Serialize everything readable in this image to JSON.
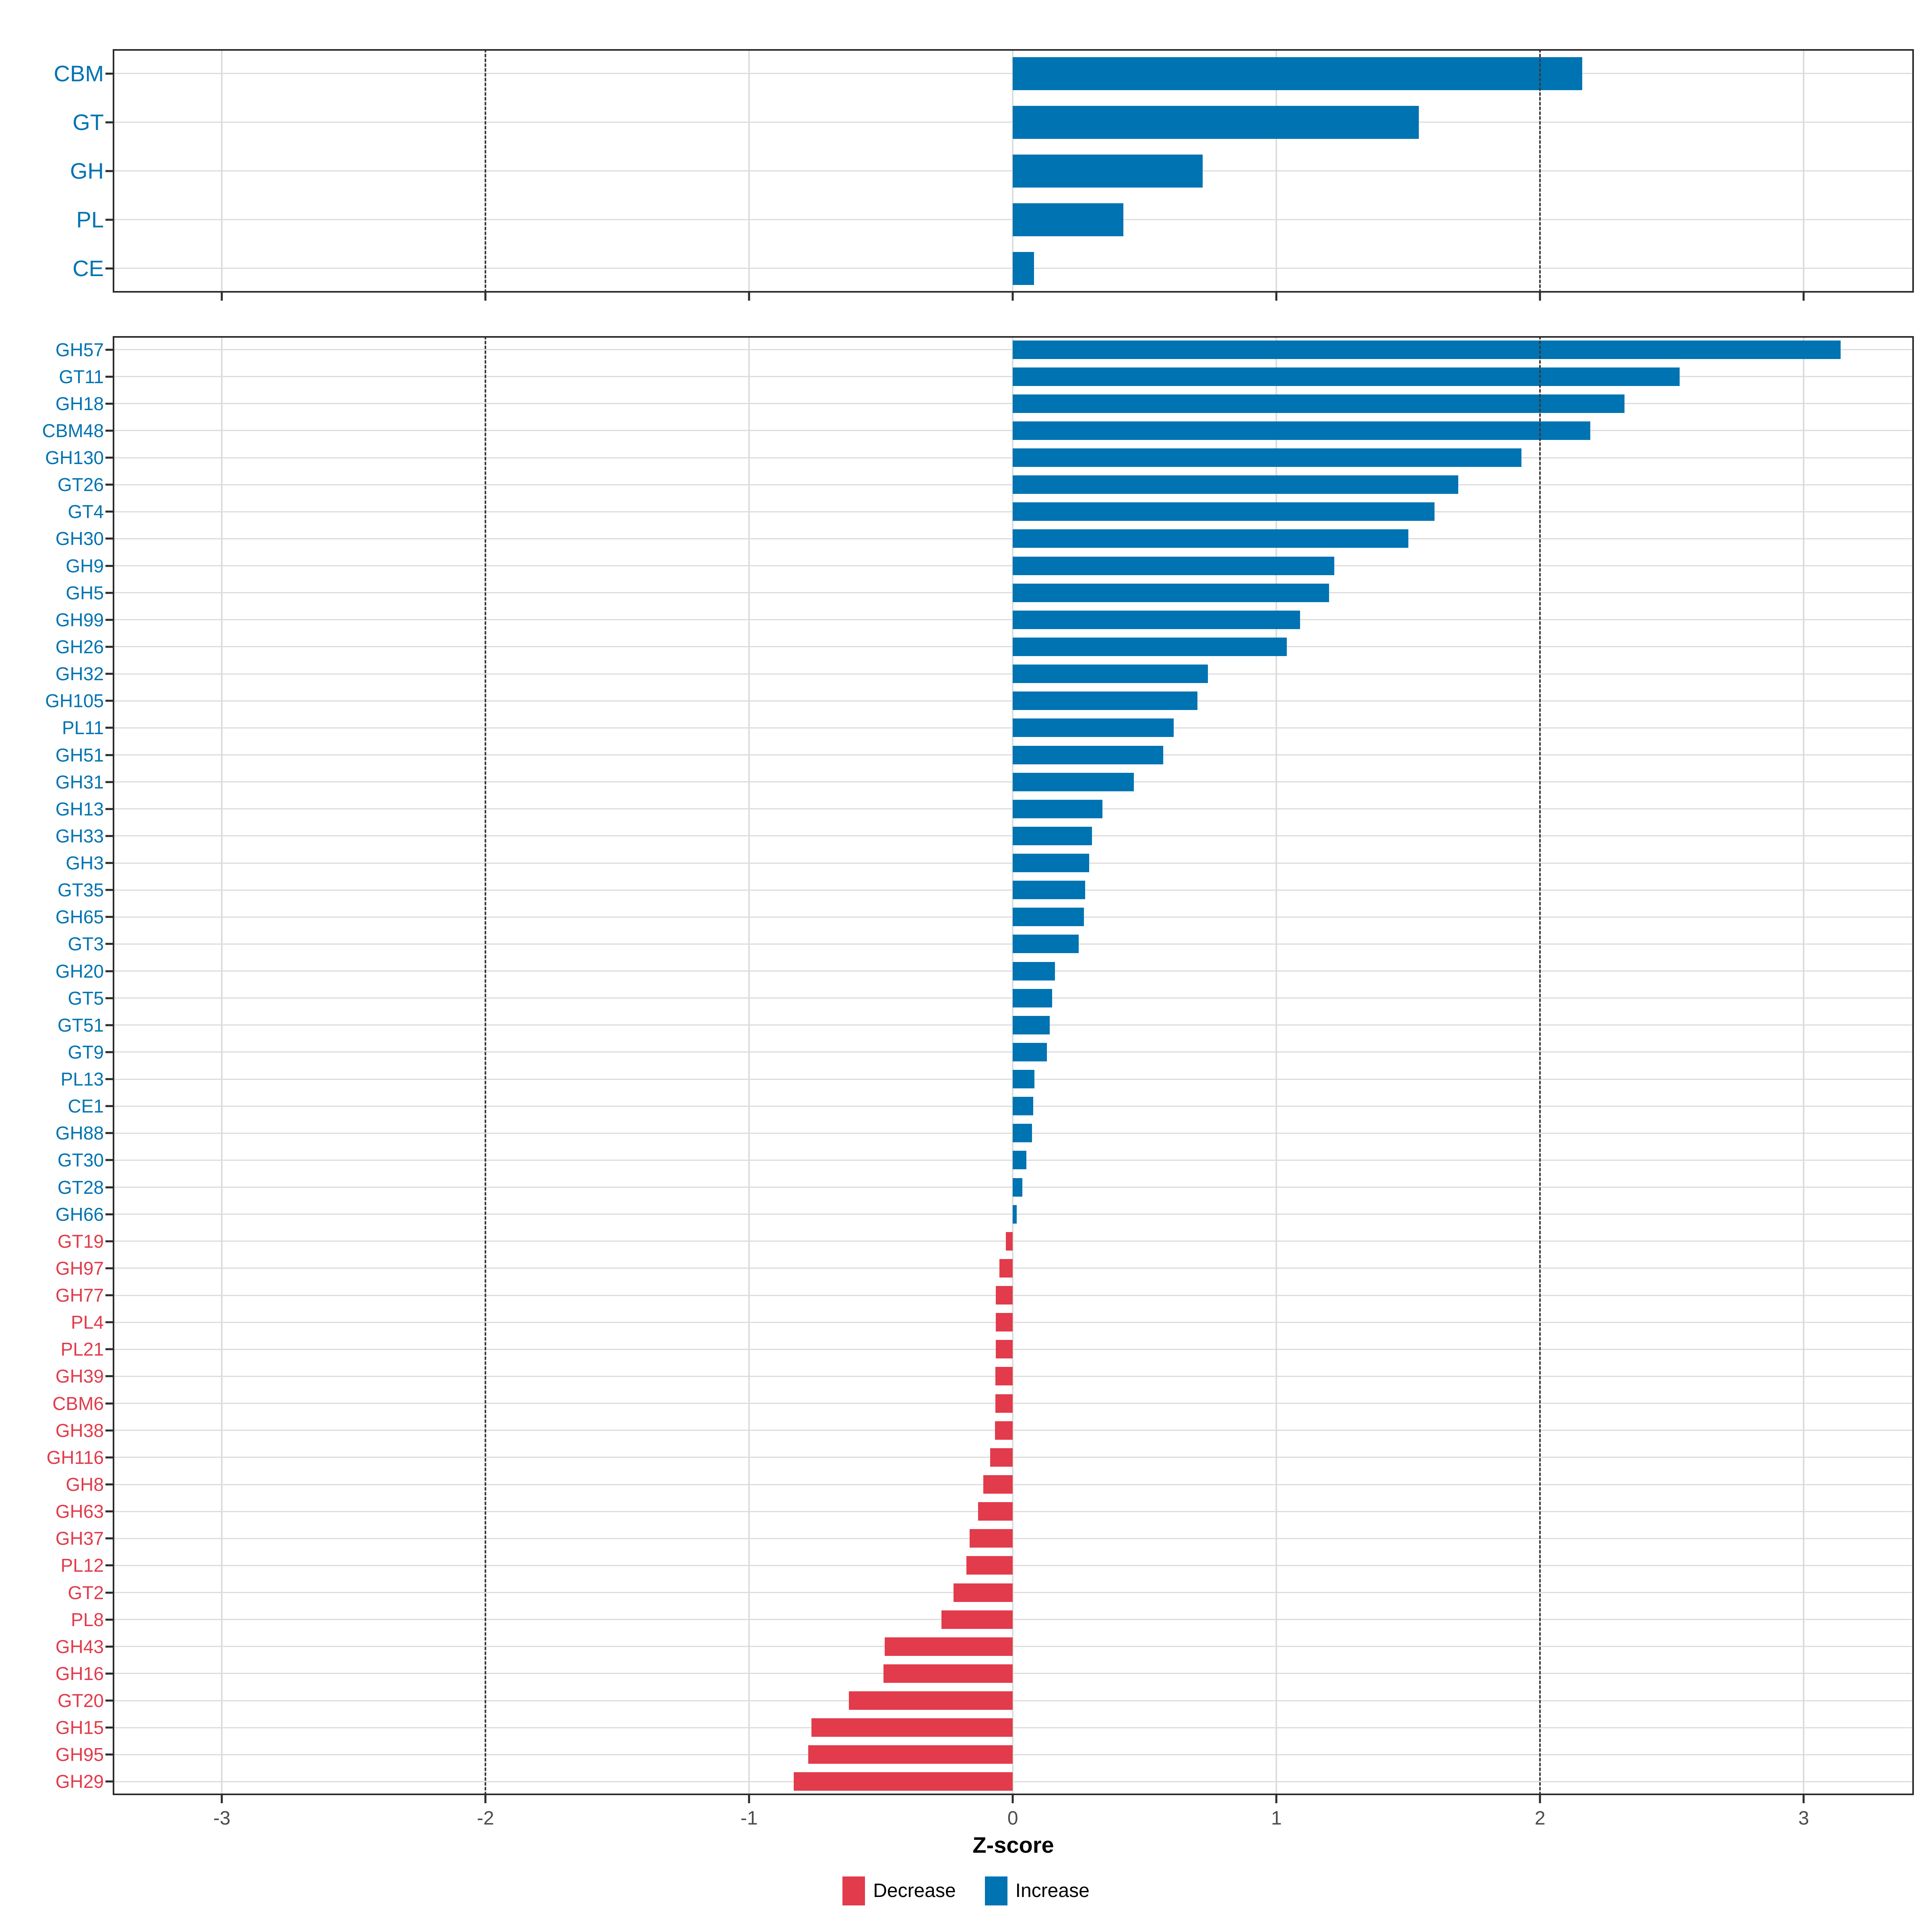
{
  "figure": {
    "background": "#FFFFFF"
  },
  "colors": {
    "increase": "#0073B2",
    "decrease": "#E23B4B",
    "grid": "#DDDDDD",
    "dashed_line": "#3A3A3A",
    "panel_border": "#2B2B2B",
    "axis_tick_text": "#4D4D4D",
    "axis_title_text": "#000000"
  },
  "axis": {
    "title": "Z-score",
    "ticks": [
      -3,
      -2,
      -1,
      0,
      1,
      2,
      3
    ],
    "domain": [
      -3.414,
      3.418
    ],
    "dashed_at": [
      -2,
      2
    ]
  },
  "legend": {
    "items": [
      {
        "label": "Decrease",
        "color_key": "decrease"
      },
      {
        "label": "Increase",
        "color_key": "increase"
      }
    ]
  },
  "chart_data": [
    {
      "type": "bar",
      "orientation": "horizontal",
      "panel": "cazyme-classes",
      "title": "",
      "xlabel": "Z-score",
      "ylabel": "",
      "xlim": [
        -3.414,
        3.418
      ],
      "x_ticks": [
        -3,
        -2,
        -1,
        0,
        1,
        2,
        3
      ],
      "dashed_reference_lines_x": [
        -2,
        2
      ],
      "grid": true,
      "label_colors_follow_sign": true,
      "categories": [
        "CBM",
        "GT",
        "GH",
        "PL",
        "CE"
      ],
      "values": [
        2.16,
        1.54,
        0.72,
        0.42,
        0.08
      ]
    },
    {
      "type": "bar",
      "orientation": "horizontal",
      "panel": "cazyme-families",
      "title": "",
      "xlabel": "Z-score",
      "ylabel": "",
      "xlim": [
        -3.414,
        3.418
      ],
      "x_ticks": [
        -3,
        -2,
        -1,
        0,
        1,
        2,
        3
      ],
      "dashed_reference_lines_x": [
        -2,
        2
      ],
      "grid": true,
      "label_colors_follow_sign": true,
      "categories": [
        "GH57",
        "GT11",
        "GH18",
        "CBM48",
        "GH130",
        "GT26",
        "GT4",
        "GH30",
        "GH9",
        "GH5",
        "GH99",
        "GH26",
        "GH32",
        "GH105",
        "PL11",
        "GH51",
        "GH31",
        "GH13",
        "GH33",
        "GH3",
        "GT35",
        "GH65",
        "GT3",
        "GH20",
        "GT5",
        "GT51",
        "GT9",
        "PL13",
        "CE1",
        "GH88",
        "GT30",
        "GT28",
        "GH66",
        "GT19",
        "GH97",
        "GH77",
        "PL4",
        "PL21",
        "GH39",
        "CBM6",
        "GH38",
        "GH116",
        "GH8",
        "GH63",
        "GH37",
        "PL12",
        "GT2",
        "PL8",
        "GH43",
        "GH16",
        "GT20",
        "GH15",
        "GH95",
        "GH29"
      ],
      "values": [
        3.14,
        2.53,
        2.32,
        2.19,
        1.93,
        1.69,
        1.6,
        1.5,
        1.22,
        1.2,
        1.09,
        1.04,
        0.74,
        0.7,
        0.61,
        0.57,
        0.46,
        0.34,
        0.3,
        0.29,
        0.275,
        0.27,
        0.25,
        0.16,
        0.15,
        0.14,
        0.13,
        0.082,
        0.078,
        0.073,
        0.052,
        0.036,
        0.015,
        -0.026,
        -0.051,
        -0.064,
        -0.065,
        -0.065,
        -0.066,
        -0.066,
        -0.067,
        -0.086,
        -0.112,
        -0.131,
        -0.163,
        -0.176,
        -0.225,
        -0.271,
        -0.486,
        -0.491,
        -0.621,
        -0.763,
        -0.776,
        -0.831
      ]
    }
  ]
}
